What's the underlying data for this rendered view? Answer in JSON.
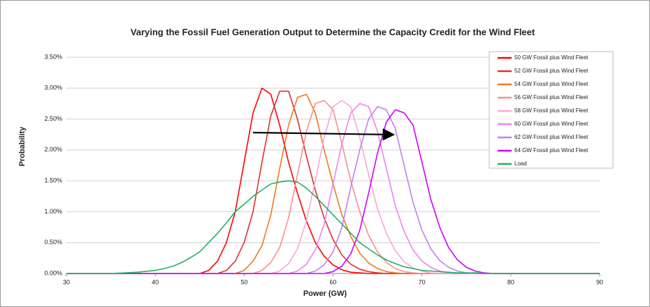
{
  "chart_data": {
    "type": "line",
    "title": "Varying the Fossil Fuel Generation Output to Determine the Capacity Credit for the Wind Fleet",
    "x_label": "Power (GW)",
    "y_label": "Probability",
    "x": [
      30,
      35,
      38,
      40,
      41,
      42,
      43,
      44,
      45,
      46,
      47,
      48,
      49,
      50,
      51,
      52,
      53,
      54,
      55,
      56,
      57,
      58,
      59,
      60,
      61,
      62,
      63,
      64,
      65,
      66,
      67,
      68,
      69,
      70,
      71,
      72,
      73,
      74,
      75,
      76,
      77,
      78,
      79,
      80,
      85,
      90
    ],
    "series": [
      {
        "name": "50 GW Fossil plus Wind Fleet",
        "color": "#ff0000",
        "values": [
          0,
          0,
          0,
          0,
          0,
          0,
          0,
          0,
          0,
          0.05,
          0.2,
          0.5,
          1.0,
          1.8,
          2.6,
          3.0,
          2.9,
          2.4,
          1.8,
          1.3,
          0.85,
          0.5,
          0.28,
          0.14,
          0.06,
          0.02,
          0.01,
          0,
          0,
          0,
          0,
          0,
          0,
          0,
          0,
          0,
          0,
          0,
          0,
          0,
          0,
          0,
          0,
          0,
          0,
          0
        ]
      },
      {
        "name": "52 GW Fossil plus Wind Fleet",
        "color": "#e0302a",
        "values": [
          0,
          0,
          0,
          0,
          0,
          0,
          0,
          0,
          0,
          0,
          0,
          0.05,
          0.2,
          0.5,
          1.0,
          1.8,
          2.55,
          2.95,
          2.95,
          2.5,
          1.9,
          1.35,
          0.9,
          0.55,
          0.3,
          0.15,
          0.07,
          0.03,
          0.01,
          0,
          0,
          0,
          0,
          0,
          0,
          0,
          0,
          0,
          0,
          0,
          0,
          0,
          0,
          0,
          0,
          0
        ]
      },
      {
        "name": "54 GW Fossil plus Wind Fleet",
        "color": "#f07820",
        "values": [
          0,
          0,
          0,
          0,
          0,
          0,
          0,
          0,
          0,
          0,
          0,
          0,
          0,
          0.05,
          0.2,
          0.45,
          0.95,
          1.7,
          2.4,
          2.85,
          2.9,
          2.6,
          2.0,
          1.45,
          0.95,
          0.6,
          0.33,
          0.17,
          0.08,
          0.03,
          0.01,
          0,
          0,
          0,
          0,
          0,
          0,
          0,
          0,
          0,
          0,
          0,
          0,
          0,
          0,
          0
        ]
      },
      {
        "name": "56 GW Fossil plus Wind Fleet",
        "color": "#f59090",
        "values": [
          0,
          0,
          0,
          0,
          0,
          0,
          0,
          0,
          0,
          0,
          0,
          0,
          0,
          0,
          0,
          0.05,
          0.18,
          0.42,
          0.9,
          1.6,
          2.3,
          2.75,
          2.8,
          2.65,
          2.1,
          1.5,
          1.0,
          0.62,
          0.35,
          0.18,
          0.08,
          0.03,
          0.01,
          0,
          0,
          0,
          0,
          0,
          0,
          0,
          0,
          0,
          0,
          0,
          0,
          0
        ]
      },
      {
        "name": "58 GW Fossil plus Wind Fleet",
        "color": "#f5a8d8",
        "values": [
          0,
          0,
          0,
          0,
          0,
          0,
          0,
          0,
          0,
          0,
          0,
          0,
          0,
          0,
          0,
          0,
          0,
          0.04,
          0.16,
          0.4,
          0.85,
          1.5,
          2.2,
          2.7,
          2.8,
          2.7,
          2.2,
          1.6,
          1.05,
          0.65,
          0.37,
          0.19,
          0.09,
          0.04,
          0.01,
          0,
          0,
          0,
          0,
          0,
          0,
          0,
          0,
          0,
          0,
          0
        ]
      },
      {
        "name": "60 GW Fossil plus Wind Fleet",
        "color": "#ee82ee",
        "values": [
          0,
          0,
          0,
          0,
          0,
          0,
          0,
          0,
          0,
          0,
          0,
          0,
          0,
          0,
          0,
          0,
          0,
          0,
          0,
          0.04,
          0.15,
          0.38,
          0.8,
          1.45,
          2.1,
          2.6,
          2.75,
          2.7,
          2.3,
          1.7,
          1.1,
          0.68,
          0.38,
          0.2,
          0.1,
          0.04,
          0.01,
          0,
          0,
          0,
          0,
          0,
          0,
          0,
          0,
          0
        ]
      },
      {
        "name": "62 GW Fossil plus Wind Fleet",
        "color": "#c080f0",
        "values": [
          0,
          0,
          0,
          0,
          0,
          0,
          0,
          0,
          0,
          0,
          0,
          0,
          0,
          0,
          0,
          0,
          0,
          0,
          0,
          0,
          0,
          0.04,
          0.14,
          0.35,
          0.75,
          1.4,
          2.0,
          2.5,
          2.7,
          2.65,
          2.35,
          1.75,
          1.15,
          0.7,
          0.4,
          0.21,
          0.1,
          0.04,
          0.01,
          0,
          0,
          0,
          0,
          0,
          0,
          0
        ]
      },
      {
        "name": "64 GW Fossil plus Wind Fleet",
        "color": "#cc00ff",
        "values": [
          0,
          0,
          0,
          0,
          0,
          0,
          0,
          0,
          0,
          0,
          0,
          0,
          0,
          0,
          0,
          0,
          0,
          0,
          0,
          0,
          0,
          0,
          0,
          0.03,
          0.12,
          0.32,
          0.7,
          1.3,
          1.95,
          2.45,
          2.65,
          2.6,
          2.4,
          1.8,
          1.2,
          0.75,
          0.42,
          0.22,
          0.1,
          0.04,
          0.01,
          0,
          0,
          0,
          0,
          0
        ]
      },
      {
        "name": "Load",
        "color": "#22b060",
        "values": [
          0,
          0,
          0.02,
          0.05,
          0.08,
          0.12,
          0.18,
          0.26,
          0.35,
          0.5,
          0.65,
          0.82,
          1.0,
          1.12,
          1.25,
          1.35,
          1.45,
          1.48,
          1.5,
          1.48,
          1.38,
          1.25,
          1.1,
          0.95,
          0.8,
          0.65,
          0.5,
          0.4,
          0.3,
          0.22,
          0.16,
          0.11,
          0.08,
          0.05,
          0.04,
          0.03,
          0.02,
          0.01,
          0.01,
          0.01,
          0,
          0,
          0,
          0,
          0,
          0
        ]
      }
    ],
    "xlim": [
      30,
      90
    ],
    "xticks": [
      30,
      40,
      50,
      60,
      70,
      80,
      90
    ],
    "ylim": [
      0,
      3.5
    ],
    "yticks": [
      {
        "value": 0,
        "label": "0.00%"
      },
      {
        "value": 0.5,
        "label": "0.50%"
      },
      {
        "value": 1,
        "label": "1.00%"
      },
      {
        "value": 1.5,
        "label": "1.50%"
      },
      {
        "value": 2,
        "label": "2.00%"
      },
      {
        "value": 2.5,
        "label": "2.50%"
      },
      {
        "value": 3,
        "label": "3.00%"
      },
      {
        "value": 3.5,
        "label": "3.50%"
      }
    ],
    "grid": true,
    "legend": "top-right"
  }
}
